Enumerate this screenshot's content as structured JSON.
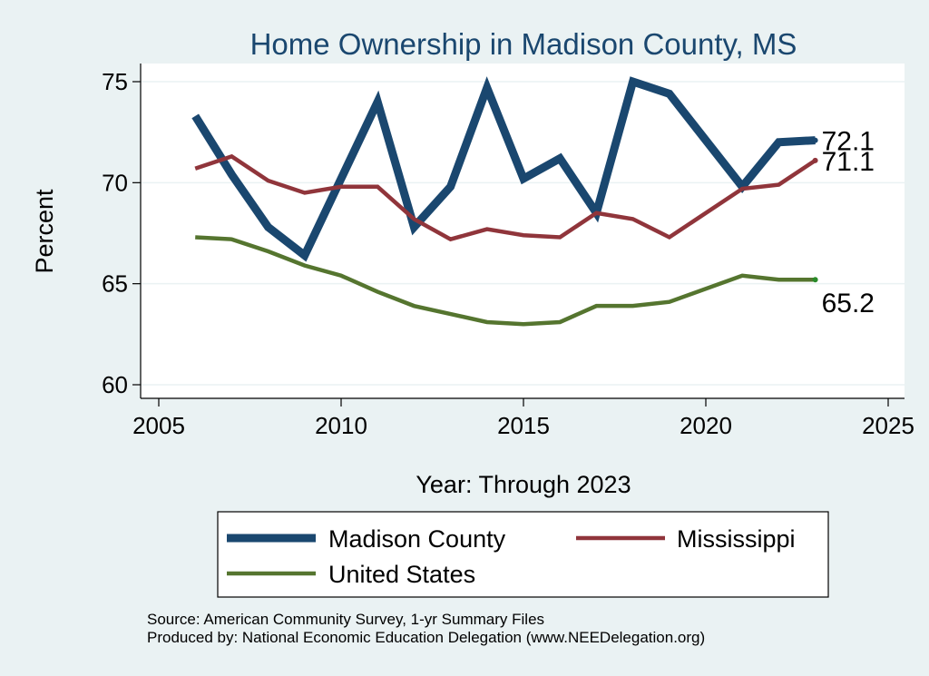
{
  "chart_data": {
    "type": "line",
    "title": "Home Ownership in Madison County, MS",
    "xlabel": "Year: Through 2023",
    "ylabel": "Percent",
    "xlim": [
      2005,
      2025
    ],
    "ylim": [
      60,
      75
    ],
    "xticks": [
      2005,
      2010,
      2015,
      2020,
      2025
    ],
    "yticks": [
      60,
      65,
      70,
      75
    ],
    "grid": true,
    "legend_position": "bottom",
    "series": [
      {
        "name": "Madison County",
        "color": "#1a476f",
        "style": "thick",
        "end_label": "72.1",
        "points": [
          [
            2006,
            73.3
          ],
          [
            2007,
            70.4
          ],
          [
            2008,
            67.8
          ],
          [
            2009,
            66.4
          ],
          [
            2010,
            70.2
          ],
          [
            2011,
            74.0
          ],
          [
            2012,
            67.8
          ],
          [
            2013,
            69.8
          ],
          [
            2014,
            74.7
          ],
          [
            2015,
            70.2
          ],
          [
            2016,
            71.2
          ],
          [
            2017,
            68.5
          ],
          [
            2018,
            75.0
          ],
          [
            2019,
            74.4
          ],
          [
            2021,
            69.8
          ],
          [
            2022,
            72.0
          ],
          [
            2023,
            72.1
          ]
        ]
      },
      {
        "name": "Mississippi",
        "color": "#90353b",
        "style": "medium",
        "end_label": "71.1",
        "points": [
          [
            2006,
            70.7
          ],
          [
            2007,
            71.3
          ],
          [
            2008,
            70.1
          ],
          [
            2009,
            69.5
          ],
          [
            2010,
            69.8
          ],
          [
            2011,
            69.8
          ],
          [
            2012,
            68.2
          ],
          [
            2013,
            67.2
          ],
          [
            2014,
            67.7
          ],
          [
            2015,
            67.4
          ],
          [
            2016,
            67.3
          ],
          [
            2017,
            68.5
          ],
          [
            2018,
            68.2
          ],
          [
            2019,
            67.3
          ],
          [
            2021,
            69.7
          ],
          [
            2022,
            69.9
          ],
          [
            2023,
            71.1
          ]
        ]
      },
      {
        "name": "United States",
        "color": "#55752f",
        "style": "medium",
        "end_label": "65.2",
        "points": [
          [
            2006,
            67.3
          ],
          [
            2007,
            67.2
          ],
          [
            2008,
            66.6
          ],
          [
            2009,
            65.9
          ],
          [
            2010,
            65.4
          ],
          [
            2011,
            64.6
          ],
          [
            2012,
            63.9
          ],
          [
            2013,
            63.5
          ],
          [
            2014,
            63.1
          ],
          [
            2015,
            63.0
          ],
          [
            2016,
            63.1
          ],
          [
            2017,
            63.9
          ],
          [
            2018,
            63.9
          ],
          [
            2019,
            64.1
          ],
          [
            2021,
            65.4
          ],
          [
            2022,
            65.2
          ],
          [
            2023,
            65.2
          ]
        ]
      }
    ],
    "notes": [
      "Source: American Community Survey, 1-yr Summary Files",
      "Produced by: National Economic Education Delegation (www.NEEDelegation.org)"
    ]
  }
}
